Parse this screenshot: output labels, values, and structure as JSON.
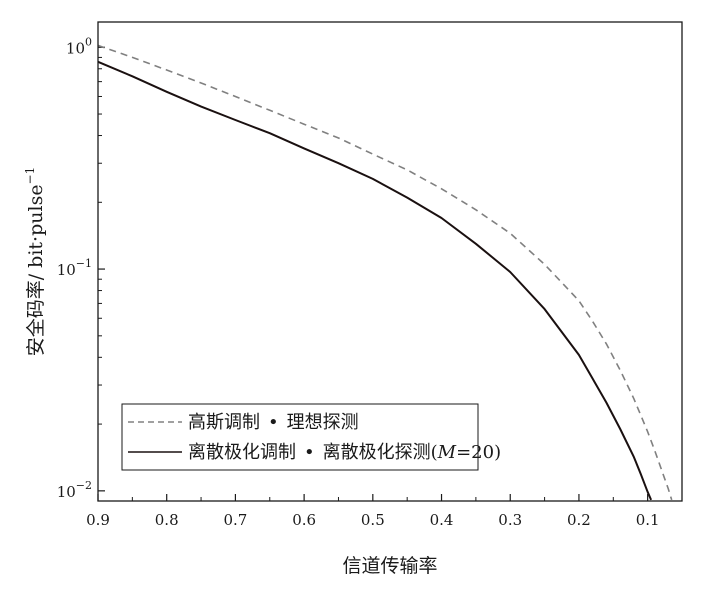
{
  "chart_data": {
    "type": "line",
    "xlabel": "信道传输率",
    "ylabel": "安全码率/ bit·pulse",
    "ylabel_sup": "−1",
    "x_axis": {
      "range": [
        0.9,
        0.05
      ],
      "reversed": true,
      "ticks": [
        0.9,
        0.8,
        0.7,
        0.6,
        0.5,
        0.4,
        0.3,
        0.2,
        0.1
      ],
      "tick_labels": [
        "0.9",
        "0.8",
        "0.7",
        "0.6",
        "0.5",
        "0.4",
        "0.3",
        "0.2",
        "0.1"
      ]
    },
    "y_axis": {
      "scale": "log",
      "range": [
        0.009,
        1.3
      ],
      "ticks": [
        1,
        0.1,
        0.01
      ],
      "tick_labels": [
        {
          "base": "10",
          "exp": "0"
        },
        {
          "base": "10",
          "exp": "−1"
        },
        {
          "base": "10",
          "exp": "−2"
        }
      ]
    },
    "grid": false,
    "legend_position": "bottom-left",
    "legend_bullet": "•",
    "series": [
      {
        "name": "高斯调制 • 理想探测",
        "legend_parts": [
          "高斯调制",
          "理想探测"
        ],
        "style": "dashed",
        "color": "#808080",
        "x": [
          0.9,
          0.85,
          0.8,
          0.75,
          0.7,
          0.65,
          0.6,
          0.55,
          0.5,
          0.45,
          0.4,
          0.35,
          0.3,
          0.25,
          0.2,
          0.18,
          0.16,
          0.14,
          0.12,
          0.1,
          0.09,
          0.08,
          0.07,
          0.065
        ],
        "y": [
          1.02,
          0.9,
          0.79,
          0.69,
          0.6,
          0.52,
          0.45,
          0.39,
          0.33,
          0.28,
          0.23,
          0.185,
          0.145,
          0.105,
          0.072,
          0.058,
          0.046,
          0.035,
          0.026,
          0.0185,
          0.0153,
          0.0125,
          0.0102,
          0.0091
        ]
      },
      {
        "name": "离散极化调制 • 离散极化探测(M=20)",
        "legend_parts": [
          "离散极化调制",
          "离散极化探测(",
          "M",
          "=20)"
        ],
        "style": "solid",
        "color": "#1a1010",
        "x": [
          0.9,
          0.85,
          0.8,
          0.75,
          0.7,
          0.65,
          0.6,
          0.55,
          0.5,
          0.45,
          0.4,
          0.35,
          0.3,
          0.25,
          0.2,
          0.18,
          0.16,
          0.14,
          0.12,
          0.11,
          0.1,
          0.095
        ],
        "y": [
          0.86,
          0.74,
          0.63,
          0.54,
          0.47,
          0.41,
          0.35,
          0.3,
          0.255,
          0.21,
          0.17,
          0.13,
          0.097,
          0.066,
          0.041,
          0.032,
          0.025,
          0.019,
          0.0142,
          0.0119,
          0.0099,
          0.0091
        ]
      }
    ]
  }
}
